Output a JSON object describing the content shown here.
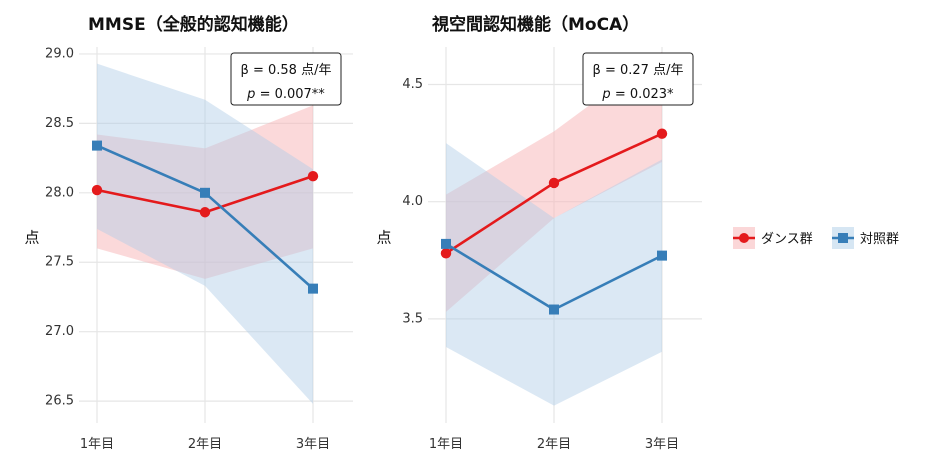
{
  "chart_data": [
    {
      "type": "line",
      "title": "MMSE（全般的認知機能）",
      "xlabel": "",
      "ylabel": "点",
      "categories": [
        "1年目",
        "2年目",
        "3年目"
      ],
      "ylim": [
        26.4,
        29.05
      ],
      "yticks": [
        "26.5",
        "27.0",
        "27.5",
        "28.0",
        "28.5",
        "29.0"
      ],
      "grid": true,
      "annotation": {
        "beta": "β = 0.58 点/年",
        "p_italic": "p",
        "p_value": " = 0.007**"
      },
      "series": [
        {
          "name": "ダンス群",
          "color": "#e41a1c",
          "marker": "circle",
          "values": [
            28.02,
            27.86,
            28.12
          ],
          "ci_lower": [
            27.6,
            27.38,
            27.6
          ],
          "ci_upper": [
            28.42,
            28.32,
            28.63
          ]
        },
        {
          "name": "対照群",
          "color": "#377eb8",
          "marker": "square",
          "values": [
            28.34,
            28.0,
            27.31
          ],
          "ci_lower": [
            27.74,
            27.33,
            26.48
          ],
          "ci_upper": [
            28.93,
            28.67,
            28.17
          ]
        }
      ]
    },
    {
      "type": "line",
      "title": "視空間認知機能（MoCA）",
      "xlabel": "",
      "ylabel": "点",
      "categories": [
        "1年目",
        "2年目",
        "3年目"
      ],
      "ylim": [
        3.09,
        4.66
      ],
      "yticks": [
        "3.5",
        "4.0",
        "4.5"
      ],
      "grid": true,
      "annotation": {
        "beta": "β = 0.27 点/年",
        "p_italic": "p",
        "p_value": " = 0.023*"
      },
      "series": [
        {
          "name": "ダンス群",
          "color": "#e41a1c",
          "marker": "circle",
          "values": [
            3.78,
            4.08,
            4.29
          ],
          "ci_lower": [
            3.53,
            3.93,
            4.17
          ],
          "ci_upper": [
            4.03,
            4.3,
            4.64
          ]
        },
        {
          "name": "対照群",
          "color": "#377eb8",
          "marker": "square",
          "values": [
            3.82,
            3.54,
            3.77
          ],
          "ci_lower": [
            3.38,
            3.13,
            3.36
          ],
          "ci_upper": [
            4.25,
            3.93,
            4.18
          ]
        }
      ]
    }
  ],
  "legend": {
    "items": [
      {
        "label": "ダンス群",
        "color": "#e41a1c",
        "fill": "#fbd7d8",
        "marker": "circle"
      },
      {
        "label": "対照群",
        "color": "#377eb8",
        "fill": "#d6e6f3",
        "marker": "square"
      }
    ]
  }
}
